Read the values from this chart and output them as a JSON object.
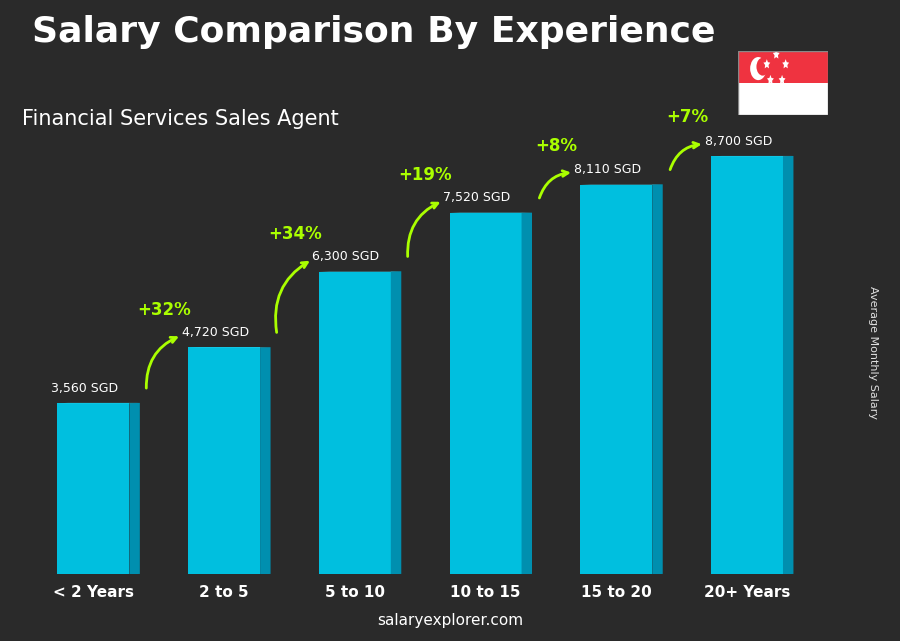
{
  "title": "Salary Comparison By Experience",
  "subtitle": "Financial Services Sales Agent",
  "categories": [
    "< 2 Years",
    "2 to 5",
    "5 to 10",
    "10 to 15",
    "15 to 20",
    "20+ Years"
  ],
  "values": [
    3560,
    4720,
    6300,
    7520,
    8110,
    8700
  ],
  "labels": [
    "3,560 SGD",
    "4,720 SGD",
    "6,300 SGD",
    "7,520 SGD",
    "8,110 SGD",
    "8,700 SGD"
  ],
  "pct_changes": [
    "+32%",
    "+34%",
    "+19%",
    "+8%",
    "+7%"
  ],
  "bar_color_face": "#00BFDF",
  "bar_color_light": "#40D8F0",
  "bar_color_dark": "#008FAF",
  "background_color": "#1a1a2e",
  "title_color": "#FFFFFF",
  "subtitle_color": "#FFFFFF",
  "label_color": "#DDDDDD",
  "pct_color": "#AAFF00",
  "xlabel_color": "#FFFFFF",
  "ylabel_text": "Average Monthly Salary",
  "footer_text": "salaryexplorer.com",
  "ylim": [
    0,
    10500
  ],
  "bar_width": 0.55
}
